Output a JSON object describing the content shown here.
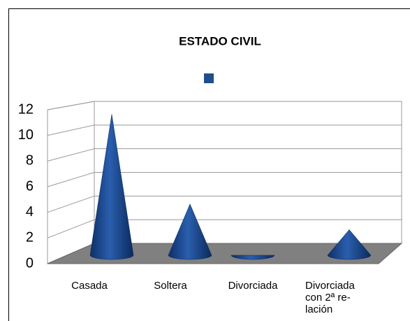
{
  "chart_data": {
    "type": "cone3d",
    "title": "ESTADO CIVIL",
    "categories": [
      "Casada",
      "Soltera",
      "Divorciada",
      "Divorciada con 2ª re-lación"
    ],
    "series": [
      {
        "color": "#1f4e8c",
        "values": [
          11,
          4,
          0,
          2
        ]
      }
    ],
    "ylim": [
      0,
      12
    ],
    "yticks": [
      0,
      2,
      4,
      6,
      8,
      10,
      12
    ],
    "grid": true
  }
}
